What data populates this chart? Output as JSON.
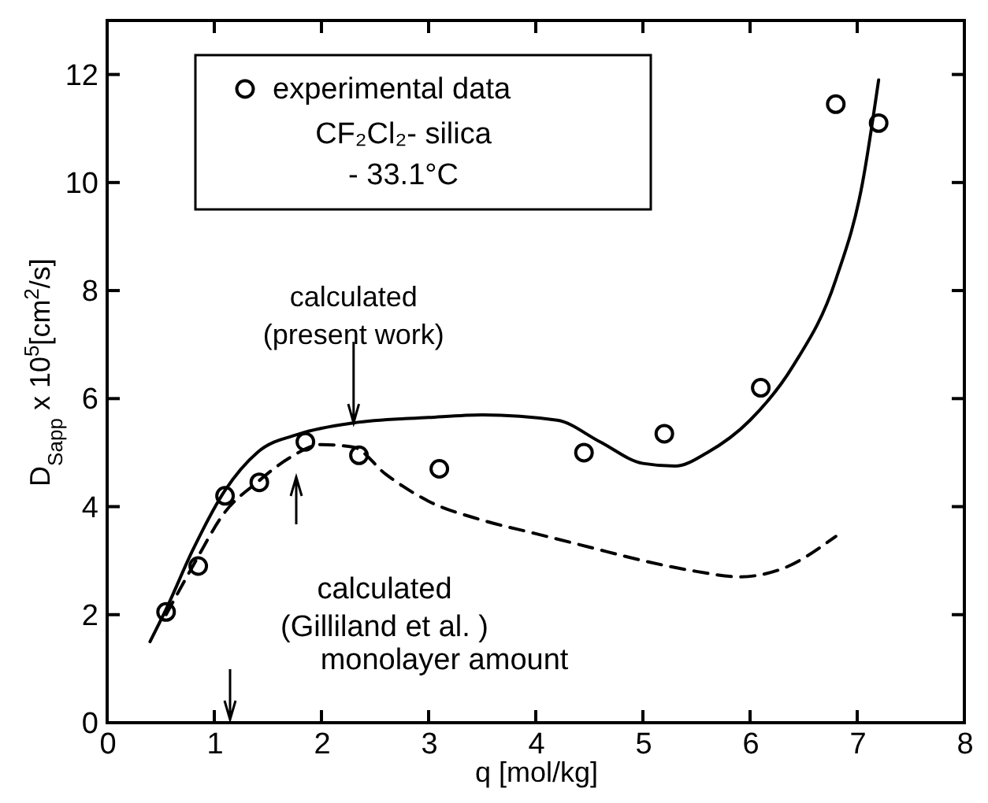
{
  "chart_data": {
    "type": "scatter",
    "xlabel": "q   [mol/kg]",
    "ylabel": "D$_{Sapp}$ x 10$^{5}$[cm$^{2}$/s]",
    "xlim": [
      0,
      8
    ],
    "xticks": [
      0,
      1,
      2,
      3,
      4,
      5,
      6,
      7,
      8
    ],
    "ylim": [
      0,
      13
    ],
    "yticks": [
      0,
      2,
      4,
      6,
      8,
      10,
      12
    ],
    "grid": false,
    "legend": "top left",
    "series": [
      {
        "name": "experimental data",
        "marker": "circle",
        "color": "#000000",
        "x": [
          0.55,
          0.85,
          1.1,
          1.42,
          1.85,
          2.35,
          3.1,
          4.45,
          5.2,
          6.1,
          6.8,
          7.2
        ],
        "values": [
          2.05,
          2.9,
          4.2,
          4.45,
          5.2,
          4.95,
          4.7,
          5.0,
          5.35,
          6.2,
          11.45,
          11.1
        ]
      },
      {
        "type": "line",
        "line_style": "solid",
        "color": "#000000",
        "x": [
          0.4,
          0.55,
          0.8,
          1.1,
          1.4,
          1.8,
          2.3,
          3.0,
          3.5,
          4.2,
          4.6,
          5.0,
          5.3,
          5.6,
          6.0,
          6.4,
          6.8,
          7.05,
          7.2
        ],
        "values": [
          1.5,
          2.1,
          3.2,
          4.3,
          5.0,
          5.35,
          5.55,
          5.65,
          5.7,
          5.6,
          5.2,
          4.8,
          4.75,
          5.0,
          5.6,
          6.6,
          8.2,
          10.0,
          11.9
        ]
      },
      {
        "type": "line",
        "line_style": "dashed",
        "color": "#000000",
        "x": [
          0.55,
          0.8,
          1.1,
          1.4,
          1.7,
          2.0,
          2.3,
          2.6,
          3.0,
          3.5,
          4.0,
          4.5,
          5.0,
          5.5,
          5.9,
          6.3,
          6.8
        ],
        "values": [
          2.0,
          2.9,
          3.9,
          4.45,
          4.9,
          5.15,
          5.1,
          4.6,
          4.1,
          3.75,
          3.5,
          3.25,
          3.0,
          2.8,
          2.7,
          2.85,
          3.45
        ]
      }
    ],
    "annotations": [
      {
        "text": "calculated\n(present work)",
        "x": 2.3,
        "y": 5.55
      },
      "calculated\n(Gilliland et al. )",
      "CF₂Cl₂- silica",
      "- 33.1°C",
      "monolayer amount"
    ]
  }
}
